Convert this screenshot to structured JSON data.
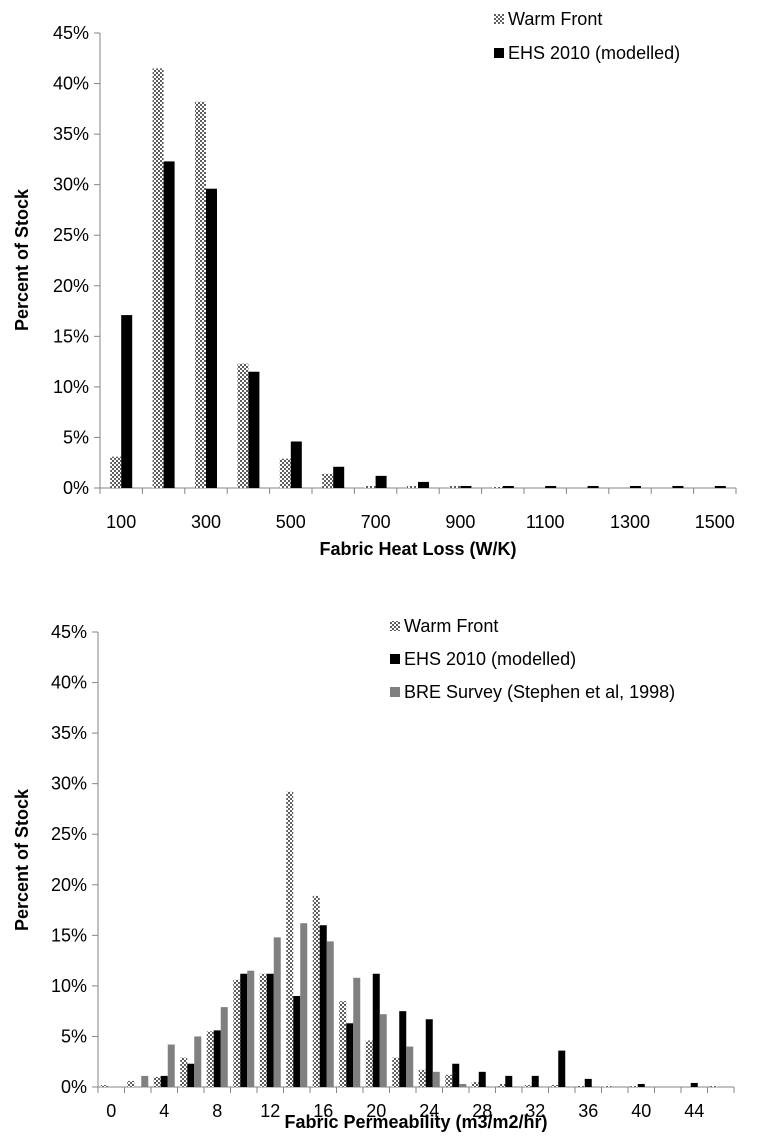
{
  "chart_data": [
    {
      "type": "bar",
      "xlabel": "Fabric Heat Loss (W/K)",
      "ylabel": "Percent of Stock",
      "ylim": [
        0,
        45
      ],
      "y_ticks": [
        "0%",
        "5%",
        "10%",
        "15%",
        "20%",
        "25%",
        "30%",
        "35%",
        "40%",
        "45%"
      ],
      "categories": [
        "100",
        "200",
        "300",
        "400",
        "500",
        "600",
        "700",
        "800",
        "900",
        "1000",
        "1100",
        "1200",
        "1300",
        "1400",
        "1500"
      ],
      "x_tick_labels": [
        "100",
        "300",
        "500",
        "700",
        "900",
        "1100",
        "1300",
        "1500"
      ],
      "legend_position": "top-right",
      "series": [
        {
          "name": "Warm Front",
          "color": "#9a9a9a",
          "pattern": "checker",
          "values": [
            3.1,
            41.5,
            38.2,
            12.3,
            2.9,
            1.4,
            0.2,
            0.2,
            0.2,
            0.1,
            0,
            0,
            0,
            0,
            0
          ]
        },
        {
          "name": "EHS 2010 (modelled)",
          "color": "#000000",
          "pattern": "solid",
          "values": [
            17.1,
            32.3,
            29.6,
            11.5,
            4.6,
            2.1,
            1.2,
            0.6,
            0.2,
            0.2,
            0.2,
            0.2,
            0.2,
            0.2,
            0.2
          ]
        }
      ]
    },
    {
      "type": "bar",
      "xlabel": "Fabric Permeability (m3/m2/hr)",
      "ylabel": "Percent of Stock",
      "ylim": [
        0,
        45
      ],
      "y_ticks": [
        "0%",
        "5%",
        "10%",
        "15%",
        "20%",
        "25%",
        "30%",
        "35%",
        "40%",
        "45%"
      ],
      "categories": [
        "0",
        "2",
        "4",
        "6",
        "8",
        "10",
        "12",
        "14",
        "16",
        "18",
        "20",
        "22",
        "24",
        "26",
        "28",
        "30",
        "32",
        "34",
        "36",
        "38",
        "40",
        "42",
        "44",
        "46"
      ],
      "x_tick_labels": [
        "0",
        "4",
        "8",
        "12",
        "16",
        "20",
        "24",
        "28",
        "32",
        "36",
        "40",
        "44"
      ],
      "legend_position": "top-right",
      "series": [
        {
          "name": "Warm Front",
          "color": "#9a9a9a",
          "pattern": "checker",
          "values": [
            0.2,
            0.6,
            1.0,
            2.9,
            5.5,
            10.6,
            11.2,
            29.2,
            18.9,
            8.5,
            4.6,
            2.9,
            1.7,
            1.2,
            0.5,
            0.3,
            0.2,
            0.2,
            0.1,
            0.1,
            0.1,
            0,
            0,
            0.1
          ]
        },
        {
          "name": "EHS 2010 (modelled)",
          "color": "#000000",
          "pattern": "solid",
          "values": [
            0,
            0,
            1.1,
            2.3,
            5.6,
            11.2,
            11.2,
            9.0,
            16.0,
            6.3,
            11.2,
            7.5,
            6.7,
            2.3,
            1.5,
            1.1,
            1.1,
            3.6,
            0.8,
            0,
            0.3,
            0,
            0.4,
            0
          ]
        },
        {
          "name": "BRE Survey (Stephen et al, 1998)",
          "color": "#808080",
          "pattern": "solid",
          "values": [
            0,
            1.1,
            4.2,
            5.0,
            7.9,
            11.5,
            14.8,
            16.2,
            14.4,
            10.8,
            7.2,
            4.0,
            1.5,
            0.3,
            0,
            0,
            0,
            0,
            0,
            0,
            0,
            0,
            0,
            0
          ]
        }
      ]
    }
  ]
}
